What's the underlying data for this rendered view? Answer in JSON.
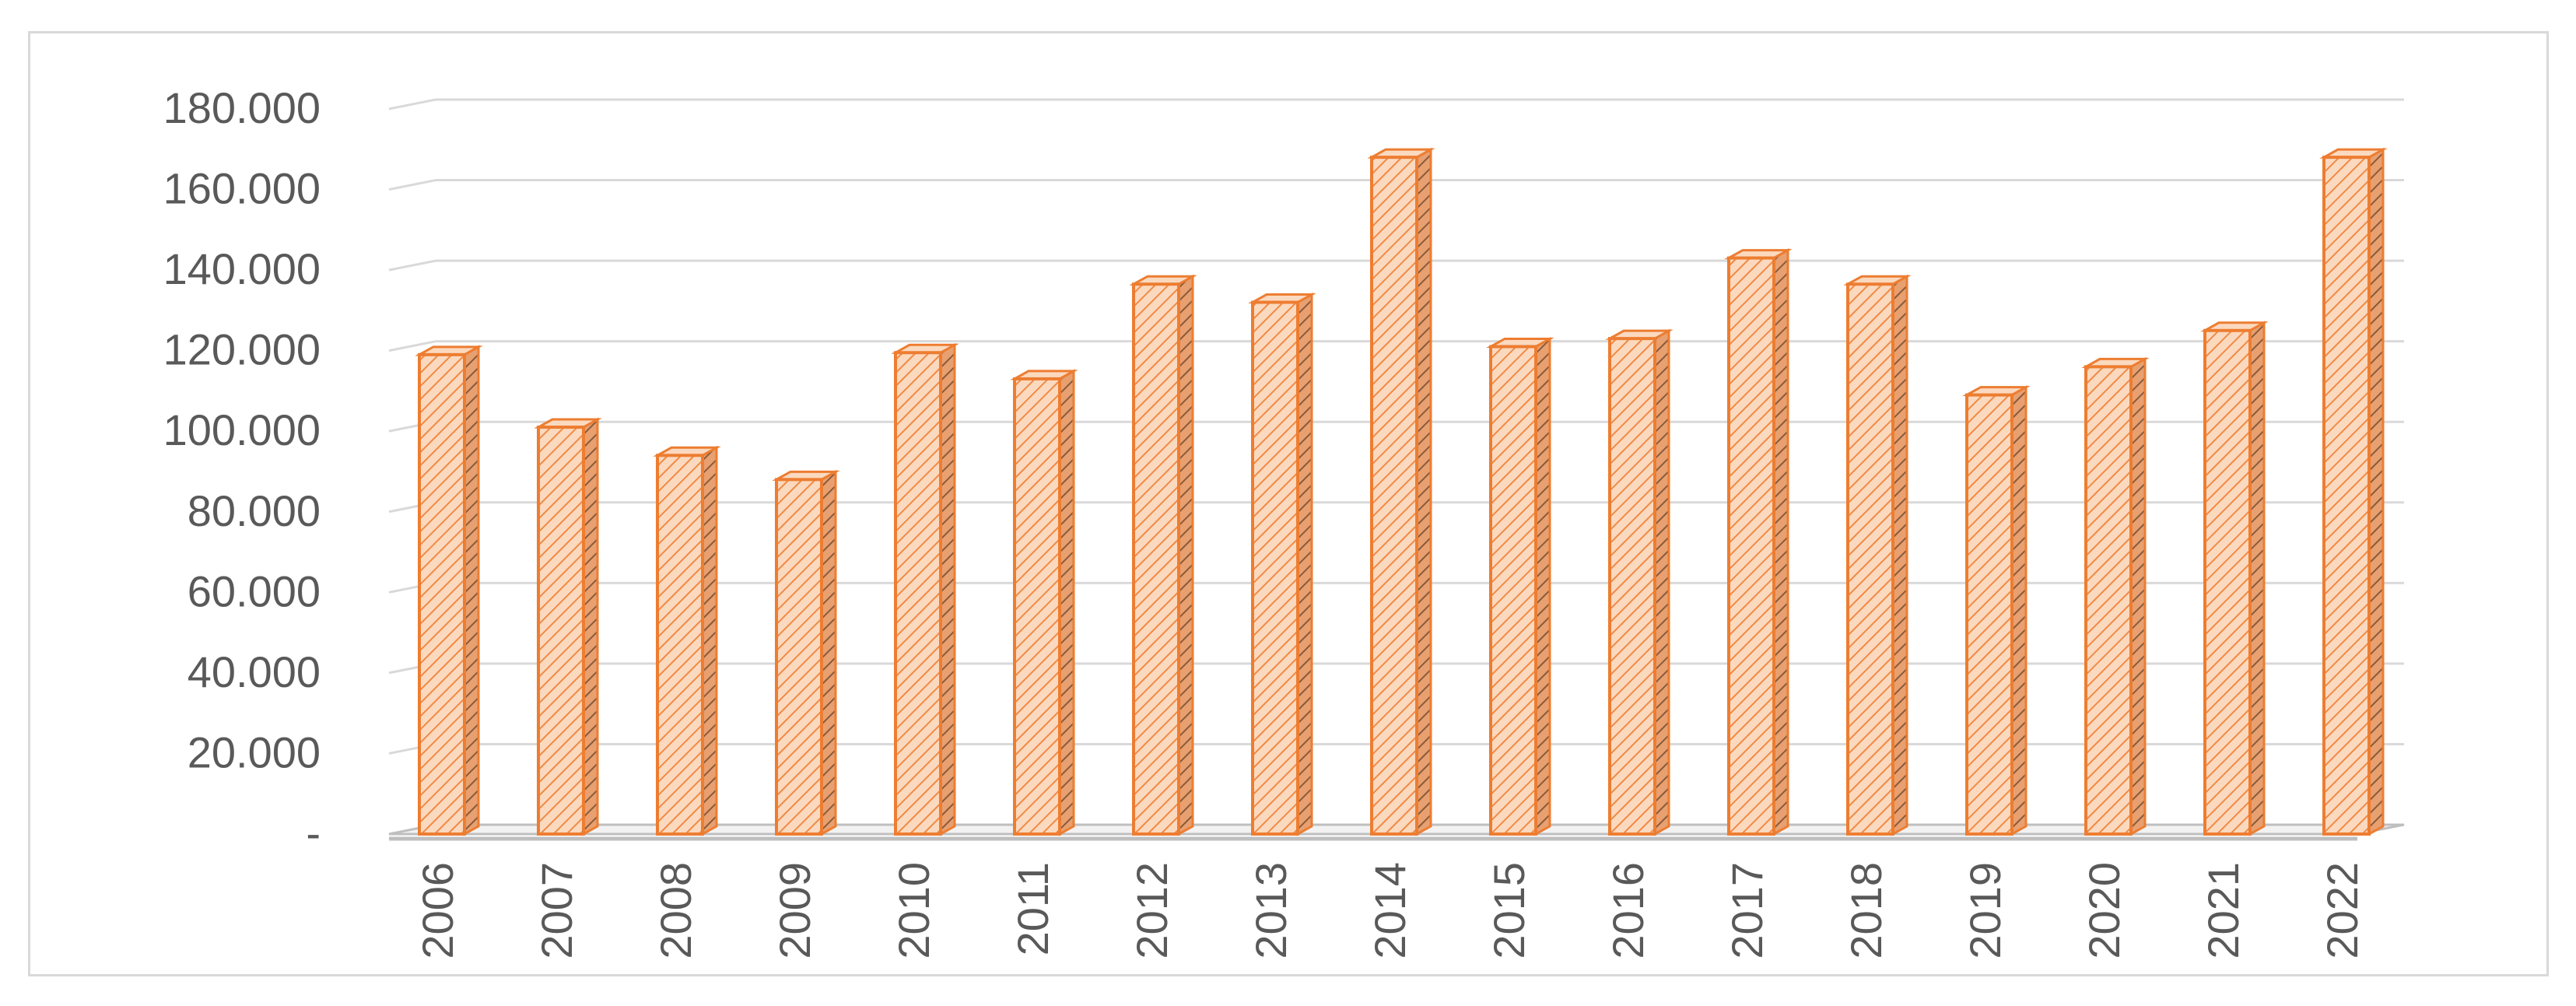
{
  "chart_data": {
    "type": "bar",
    "categories": [
      "2006",
      "2007",
      "2008",
      "2009",
      "2010",
      "2011",
      "2012",
      "2013",
      "2014",
      "2015",
      "2016",
      "2017",
      "2018",
      "2019",
      "2020",
      "2021",
      "2022"
    ],
    "values": [
      119000,
      101000,
      94000,
      88000,
      119500,
      113000,
      136500,
      132000,
      168000,
      121000,
      123000,
      143000,
      136500,
      109000,
      116000,
      125000,
      168000
    ],
    "y_ticks": [
      "-",
      "20.000",
      "40.000",
      "60.000",
      "80.000",
      "100.000",
      "120.000",
      "140.000",
      "160.000",
      "180.000"
    ],
    "ylim": [
      0,
      180000
    ],
    "title": "",
    "xlabel": "",
    "ylabel": "",
    "grid": true,
    "legend": "none",
    "bar_fill": "#fbd9bf",
    "bar_hatch": "#f08a44",
    "bar_edge": "#ed7d31",
    "bar_side": "#c96a22",
    "gridline_color": "#d9d9d9",
    "text_color": "#595959"
  }
}
